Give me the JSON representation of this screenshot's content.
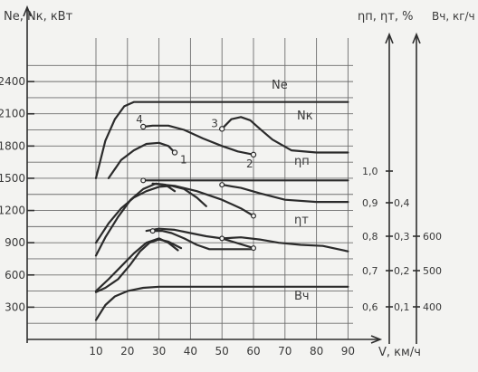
{
  "chart_data": {
    "type": "line",
    "xlabel": "V, км/ч",
    "x_ticks": [
      10,
      20,
      30,
      40,
      50,
      60,
      70,
      80,
      90
    ],
    "xlim": [
      10,
      90
    ],
    "left_axis": {
      "label": "Ne, Nк, кВт",
      "ticks": [
        300,
        600,
        900,
        1200,
        1500,
        1800,
        2100,
        2400
      ],
      "range": [
        0,
        2560
      ]
    },
    "right_axis_eta": {
      "label": "ηп, ηт, %",
      "ticks": [
        "0,6",
        "0,7",
        "0,8",
        "0,9",
        "1,0"
      ]
    },
    "right_axis_eta_t": {
      "ticks": [
        "0,1",
        "0,2",
        "0,3",
        "0,4"
      ]
    },
    "right_axis_b": {
      "label": "Вч, кг/ч",
      "ticks": [
        "400",
        "500",
        "600"
      ]
    },
    "curve_labels": [
      "Nе",
      "Nк",
      "ηп",
      "ηт",
      "Вч"
    ],
    "point_labels": [
      "1",
      "2",
      "3",
      "4"
    ],
    "grid": true,
    "series": [
      {
        "name": "Nе",
        "axis": "left",
        "points": [
          [
            10,
            1500
          ],
          [
            13,
            1850
          ],
          [
            16,
            2050
          ],
          [
            19,
            2170
          ],
          [
            22,
            2210
          ],
          [
            90,
            2210
          ]
        ]
      },
      {
        "name": "Nк",
        "axis": "left",
        "points": [
          [
            50,
            1960
          ],
          [
            53,
            2050
          ],
          [
            56,
            2070
          ],
          [
            59,
            2040
          ],
          [
            62,
            1960
          ],
          [
            66,
            1860
          ],
          [
            72,
            1760
          ],
          [
            80,
            1740
          ],
          [
            90,
            1740
          ]
        ]
      },
      {
        "name": "Nк",
        "axis": "left",
        "points": [
          [
            25,
            1980
          ],
          [
            28,
            1990
          ],
          [
            33,
            1990
          ],
          [
            38,
            1950
          ],
          [
            44,
            1870
          ],
          [
            50,
            1800
          ],
          [
            55,
            1750
          ],
          [
            60,
            1720
          ]
        ]
      },
      {
        "name": "Nк",
        "axis": "left",
        "points": [
          [
            14,
            1500
          ],
          [
            18,
            1670
          ],
          [
            22,
            1760
          ],
          [
            26,
            1820
          ],
          [
            30,
            1830
          ],
          [
            33,
            1800
          ],
          [
            35,
            1740
          ]
        ]
      },
      {
        "name": "ηп",
        "axis": "left",
        "points": [
          [
            25,
            1480
          ],
          [
            90,
            1480
          ]
        ]
      },
      {
        "name": "ηп",
        "axis": "left",
        "points": [
          [
            50,
            1440
          ],
          [
            56,
            1410
          ],
          [
            62,
            1360
          ],
          [
            70,
            1300
          ],
          [
            80,
            1280
          ],
          [
            90,
            1280
          ]
        ]
      },
      {
        "name": "ηп",
        "axis": "left",
        "points": [
          [
            28,
            1450
          ],
          [
            35,
            1430
          ],
          [
            42,
            1380
          ],
          [
            50,
            1300
          ],
          [
            56,
            1220
          ],
          [
            60,
            1150
          ]
        ]
      },
      {
        "name": "ηп",
        "axis": "left",
        "points": [
          [
            10,
            780
          ],
          [
            13,
            950
          ],
          [
            17,
            1140
          ],
          [
            21,
            1300
          ],
          [
            25,
            1400
          ],
          [
            29,
            1450
          ],
          [
            32,
            1440
          ],
          [
            35,
            1380
          ]
        ]
      },
      {
        "name": "ηп",
        "axis": "left",
        "points": [
          [
            10,
            900
          ],
          [
            14,
            1080
          ],
          [
            18,
            1220
          ],
          [
            22,
            1320
          ],
          [
            26,
            1380
          ],
          [
            30,
            1420
          ],
          [
            34,
            1430
          ],
          [
            38,
            1400
          ],
          [
            42,
            1320
          ],
          [
            45,
            1240
          ]
        ]
      },
      {
        "name": "ηт",
        "axis": "left",
        "points": [
          [
            26,
            1010
          ],
          [
            30,
            1030
          ],
          [
            35,
            1020
          ],
          [
            40,
            990
          ],
          [
            45,
            960
          ],
          [
            50,
            940
          ],
          [
            56,
            950
          ],
          [
            62,
            930
          ],
          [
            68,
            900
          ],
          [
            75,
            880
          ],
          [
            82,
            870
          ],
          [
            90,
            820
          ]
        ]
      },
      {
        "name": "ηт",
        "axis": "left",
        "points": [
          [
            50,
            940
          ],
          [
            60,
            850
          ]
        ]
      },
      {
        "name": "ηт",
        "axis": "left",
        "points": [
          [
            28,
            1010
          ],
          [
            31,
            1010
          ],
          [
            34,
            990
          ],
          [
            38,
            940
          ],
          [
            42,
            880
          ],
          [
            46,
            840
          ],
          [
            52,
            840
          ],
          [
            60,
            840
          ]
        ]
      },
      {
        "name": "ηт",
        "axis": "left",
        "points": [
          [
            10,
            450
          ],
          [
            14,
            560
          ],
          [
            18,
            680
          ],
          [
            22,
            800
          ],
          [
            26,
            900
          ],
          [
            30,
            940
          ],
          [
            33,
            900
          ],
          [
            36,
            830
          ]
        ]
      },
      {
        "name": "Вч",
        "axis": "left",
        "points": [
          [
            10,
            180
          ],
          [
            13,
            320
          ],
          [
            16,
            400
          ],
          [
            20,
            450
          ],
          [
            25,
            480
          ],
          [
            30,
            490
          ],
          [
            90,
            490
          ]
        ]
      },
      {
        "name": "Вч",
        "axis": "left",
        "points": [
          [
            10,
            440
          ],
          [
            13,
            480
          ],
          [
            17,
            560
          ],
          [
            21,
            700
          ],
          [
            24,
            820
          ],
          [
            27,
            900
          ],
          [
            30,
            930
          ],
          [
            33,
            910
          ],
          [
            37,
            850
          ]
        ]
      }
    ],
    "labeled_points": [
      {
        "label": "1",
        "x": 35,
        "y": 1740
      },
      {
        "label": "2",
        "x": 60,
        "y": 1720
      },
      {
        "label": "3",
        "x": 50,
        "y": 1960
      },
      {
        "label": "4",
        "x": 25,
        "y": 1980
      }
    ]
  }
}
